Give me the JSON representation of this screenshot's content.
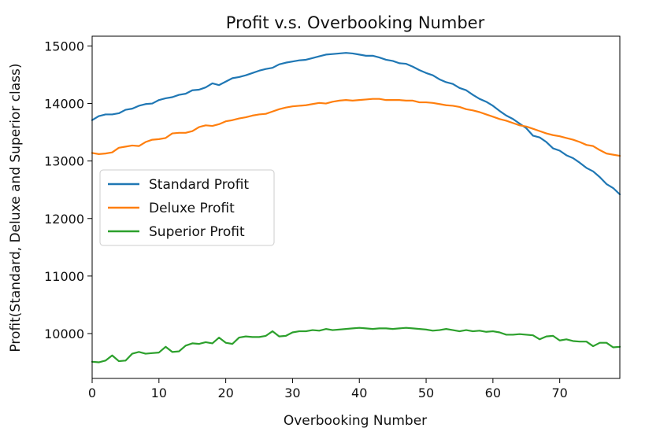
{
  "chart_data": {
    "type": "line",
    "title": "Profit v.s. Overbooking Number",
    "xlabel": "Overbooking Number",
    "ylabel": "Profit(Standard, Deluxe and Superior class)",
    "xlim": [
      0,
      79
    ],
    "ylim": [
      9220,
      15170
    ],
    "xticks": [
      0,
      10,
      20,
      30,
      40,
      50,
      60,
      70
    ],
    "yticks": [
      10000,
      11000,
      12000,
      13000,
      14000,
      15000
    ],
    "grid": false,
    "legend_position": "center-left",
    "x": [
      0,
      1,
      2,
      3,
      4,
      5,
      6,
      7,
      8,
      9,
      10,
      11,
      12,
      13,
      14,
      15,
      16,
      17,
      18,
      19,
      20,
      21,
      22,
      23,
      24,
      25,
      26,
      27,
      28,
      29,
      30,
      31,
      32,
      33,
      34,
      35,
      36,
      37,
      38,
      39,
      40,
      41,
      42,
      43,
      44,
      45,
      46,
      47,
      48,
      49,
      50,
      51,
      52,
      53,
      54,
      55,
      56,
      57,
      58,
      59,
      60,
      61,
      62,
      63,
      64,
      65,
      66,
      67,
      68,
      69,
      70,
      71,
      72,
      73,
      74,
      75,
      76,
      77,
      78,
      79
    ],
    "series": [
      {
        "name": "Standard Profit",
        "color": "#1f77b4",
        "values": [
          13710,
          13780,
          13810,
          13810,
          13830,
          13890,
          13910,
          13960,
          13990,
          14000,
          14060,
          14090,
          14110,
          14150,
          14170,
          14230,
          14240,
          14280,
          14350,
          14320,
          14380,
          14440,
          14460,
          14490,
          14530,
          14570,
          14600,
          14620,
          14680,
          14710,
          14730,
          14750,
          14760,
          14790,
          14820,
          14850,
          14860,
          14870,
          14880,
          14870,
          14850,
          14830,
          14830,
          14800,
          14760,
          14740,
          14700,
          14690,
          14640,
          14580,
          14530,
          14490,
          14420,
          14370,
          14340,
          14270,
          14230,
          14150,
          14080,
          14030,
          13960,
          13870,
          13790,
          13730,
          13650,
          13570,
          13440,
          13410,
          13330,
          13220,
          13180,
          13100,
          13050,
          12970,
          12880,
          12820,
          12720,
          12600,
          12530,
          12420
        ]
      },
      {
        "name": "Deluxe Profit",
        "color": "#ff7f0e",
        "values": [
          13140,
          13120,
          13130,
          13150,
          13230,
          13250,
          13270,
          13260,
          13330,
          13370,
          13380,
          13400,
          13480,
          13490,
          13490,
          13520,
          13590,
          13620,
          13610,
          13640,
          13690,
          13710,
          13740,
          13760,
          13790,
          13810,
          13820,
          13860,
          13900,
          13930,
          13950,
          13960,
          13970,
          13990,
          14010,
          14000,
          14030,
          14050,
          14060,
          14050,
          14060,
          14070,
          14080,
          14080,
          14060,
          14060,
          14060,
          14050,
          14050,
          14020,
          14020,
          14010,
          13990,
          13970,
          13960,
          13940,
          13900,
          13880,
          13850,
          13810,
          13770,
          13730,
          13700,
          13660,
          13620,
          13600,
          13560,
          13520,
          13480,
          13450,
          13430,
          13400,
          13370,
          13330,
          13280,
          13260,
          13190,
          13130,
          13110,
          13090
        ]
      },
      {
        "name": "Superior Profit",
        "color": "#2ca02c",
        "values": [
          9510,
          9500,
          9530,
          9620,
          9520,
          9530,
          9650,
          9680,
          9650,
          9660,
          9670,
          9770,
          9680,
          9690,
          9790,
          9830,
          9820,
          9850,
          9830,
          9930,
          9840,
          9820,
          9930,
          9950,
          9940,
          9940,
          9960,
          10040,
          9950,
          9960,
          10020,
          10040,
          10040,
          10060,
          10050,
          10080,
          10060,
          10070,
          10080,
          10090,
          10100,
          10090,
          10080,
          10090,
          10090,
          10080,
          10090,
          10100,
          10090,
          10080,
          10070,
          10050,
          10060,
          10080,
          10060,
          10040,
          10060,
          10040,
          10050,
          10030,
          10040,
          10020,
          9980,
          9980,
          9990,
          9980,
          9970,
          9900,
          9950,
          9960,
          9880,
          9900,
          9870,
          9860,
          9860,
          9780,
          9840,
          9840,
          9760,
          9770
        ]
      }
    ]
  }
}
